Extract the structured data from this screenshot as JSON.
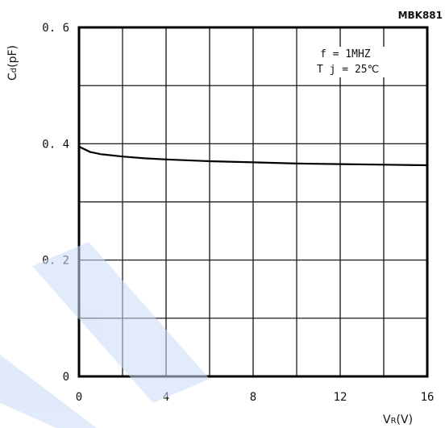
{
  "figure_code": "MBK881",
  "chart_data": {
    "type": "line",
    "xlabel": {
      "main": "V",
      "sub": "R",
      "unit": "(V)"
    },
    "ylabel": {
      "main": "C",
      "sub": "d",
      "unit": "(pF)"
    },
    "xlim": [
      0,
      16
    ],
    "ylim": [
      0,
      0.6
    ],
    "x_ticks": [
      "0",
      "4",
      "8",
      "12",
      "16"
    ],
    "y_ticks": [
      "0",
      "0. 2",
      "0. 4",
      "0. 6"
    ],
    "grid": true,
    "annotations": [
      "f = 1MHZ",
      "T j = 25℃"
    ],
    "series": [
      {
        "x": [
          0,
          0.5,
          1,
          2,
          3,
          4,
          6,
          8,
          10,
          12,
          14,
          16
        ],
        "y": [
          0.395,
          0.386,
          0.382,
          0.378,
          0.375,
          0.373,
          0.37,
          0.368,
          0.366,
          0.365,
          0.364,
          0.363
        ]
      }
    ]
  }
}
